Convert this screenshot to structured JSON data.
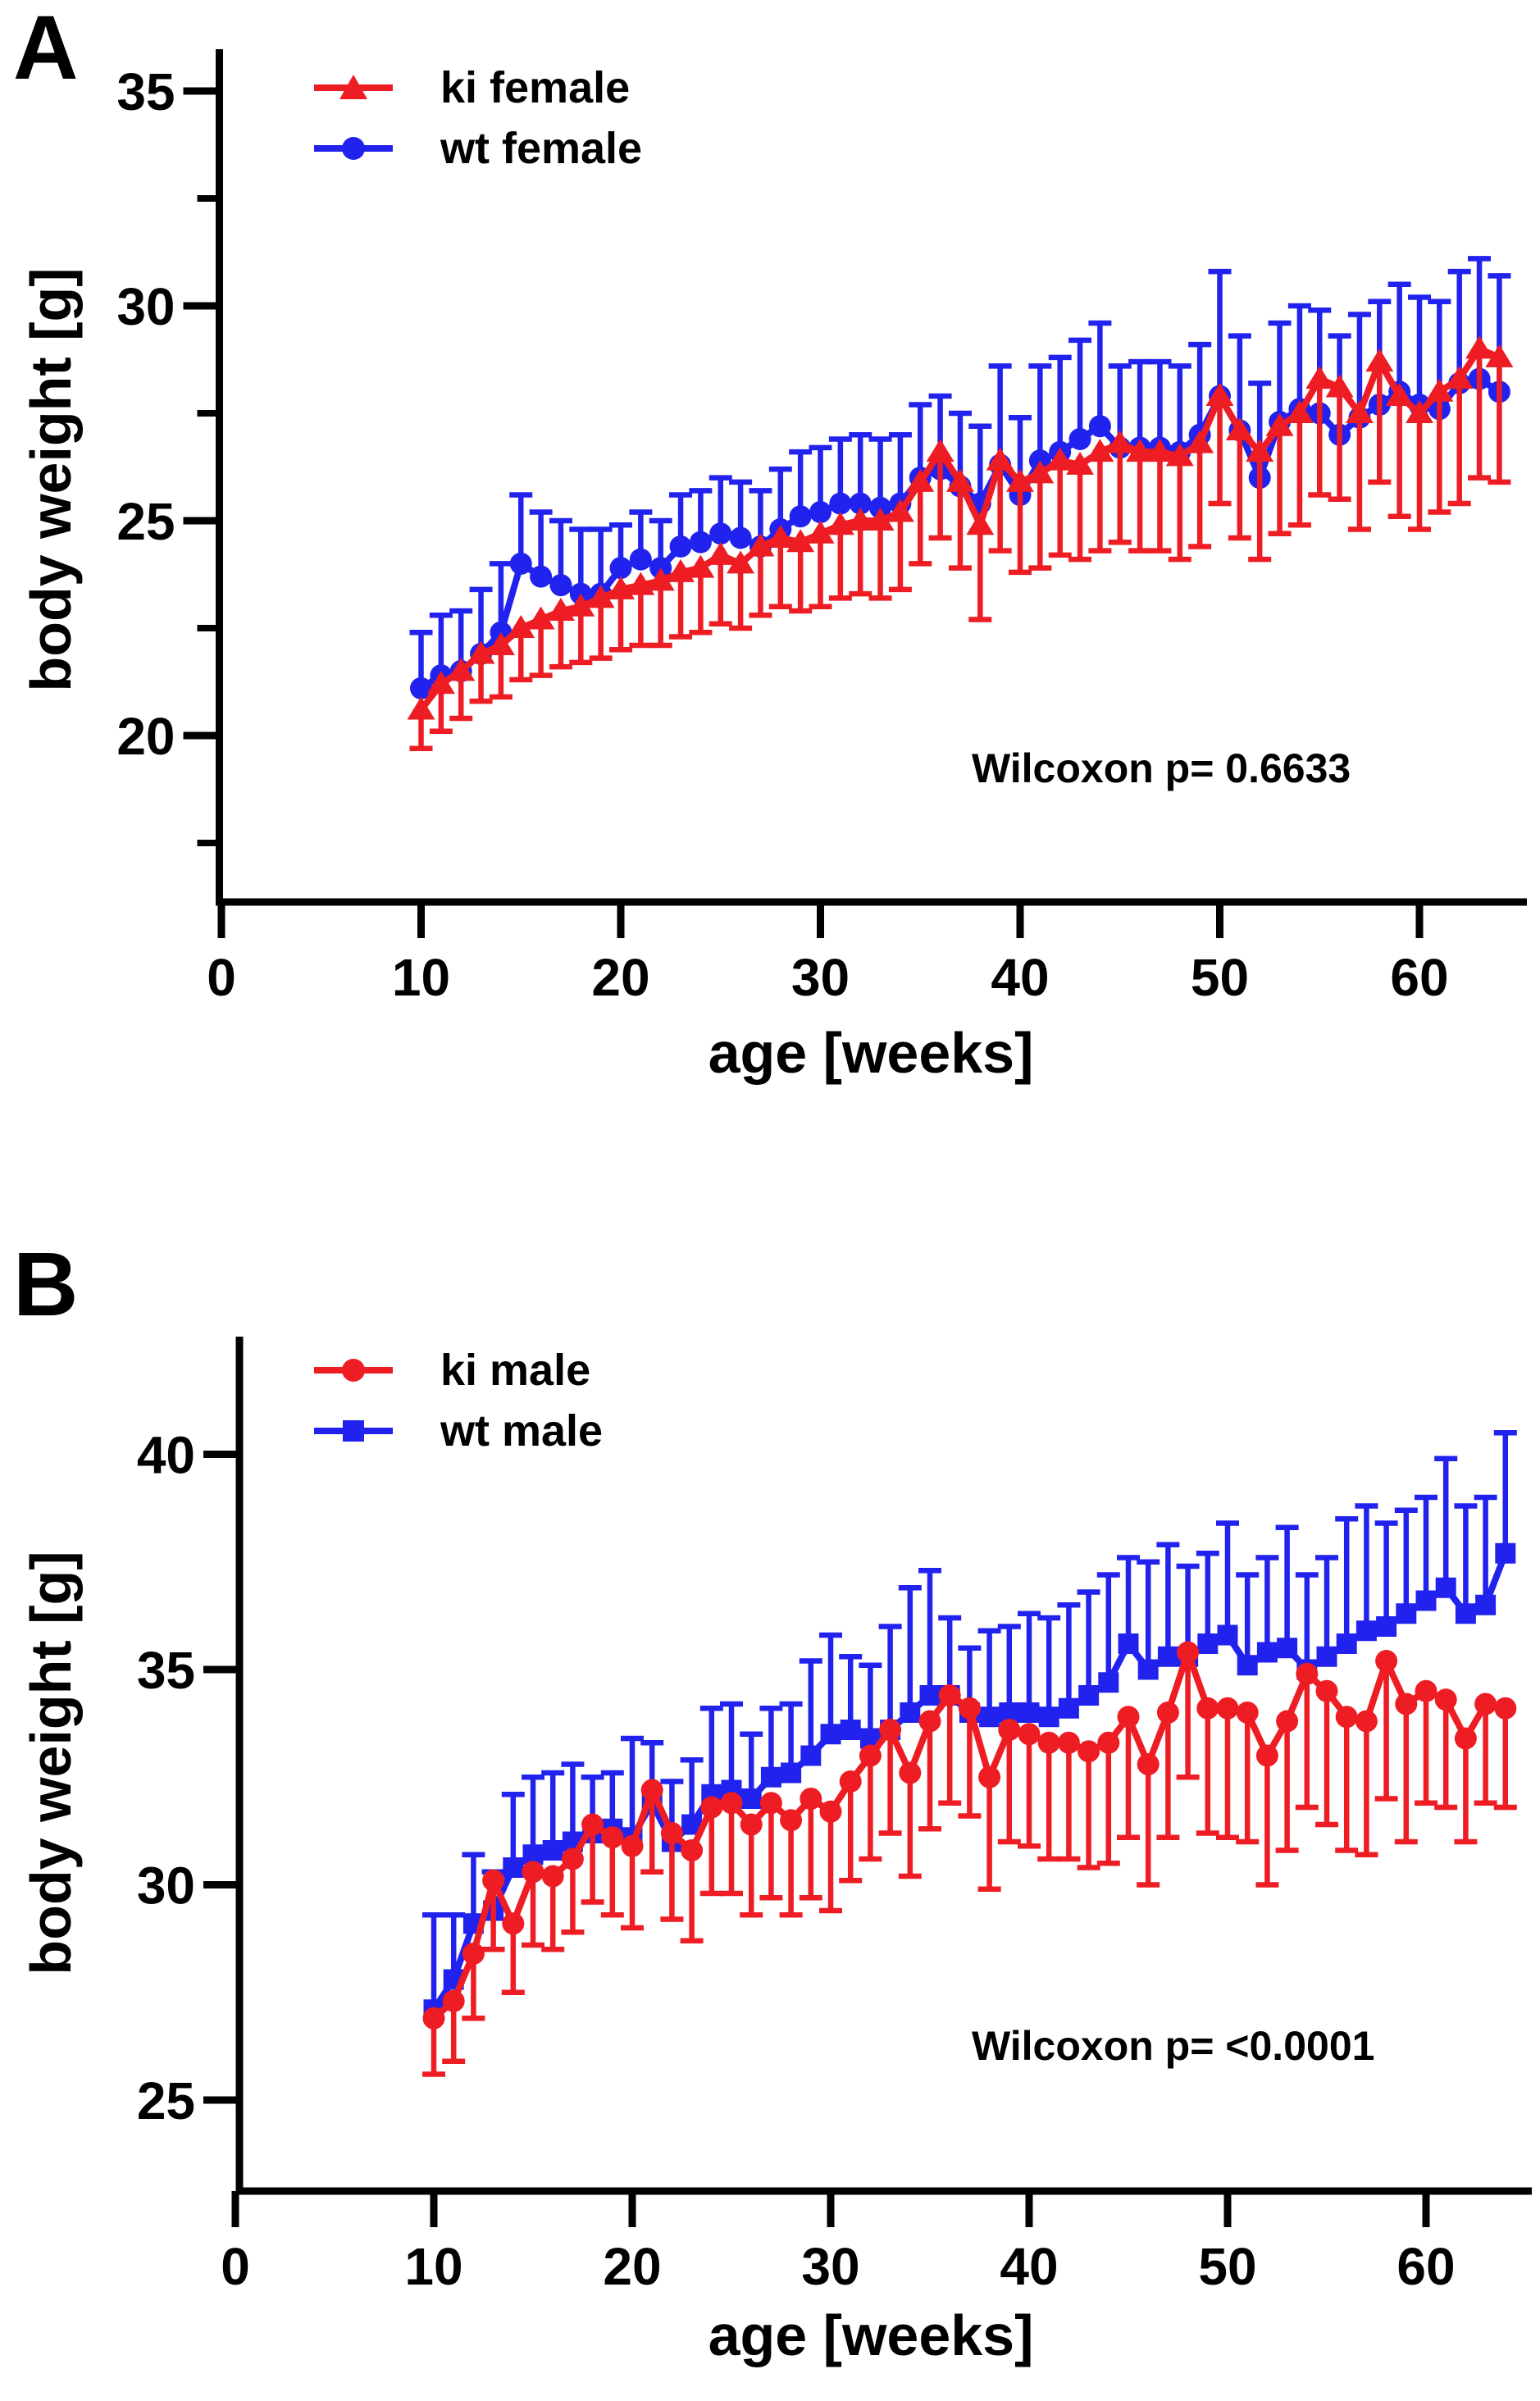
{
  "figure": {
    "background": "#ffffff",
    "text_color": "#000000",
    "panels": [
      {
        "label": "A"
      },
      {
        "label": "B"
      }
    ]
  },
  "chart_data": [
    {
      "type": "line",
      "panel": "A",
      "xlabel": "age [weeks]",
      "ylabel": "body weight [g]",
      "annotation": "Wilcoxon p= 0.6633",
      "legend_position": "top-left-inside",
      "grid": false,
      "xlim": [
        0,
        65.4
      ],
      "ylim": [
        16.2,
        36.0
      ],
      "x_ticks": [
        0,
        10,
        20,
        30,
        40,
        50,
        60
      ],
      "y_major_ticks": [
        20,
        25,
        30,
        35
      ],
      "y_minor_ticks": [
        17.5,
        22.5,
        27.5,
        32.5
      ],
      "x": [
        10,
        11,
        12,
        13,
        14,
        15,
        16,
        17,
        18,
        19,
        20,
        21,
        22,
        23,
        24,
        25,
        26,
        27,
        28,
        29,
        30,
        31,
        32,
        33,
        34,
        35,
        36,
        37,
        38,
        39,
        40,
        41,
        42,
        43,
        44,
        45,
        46,
        47,
        48,
        49,
        50,
        51,
        52,
        53,
        54,
        55,
        56,
        57,
        58,
        59,
        60,
        61,
        62,
        63,
        64
      ],
      "series": [
        {
          "name": "ki female",
          "color": "#EE1C23",
          "marker": "triangle",
          "error_direction": "down",
          "values": [
            20.6,
            21.2,
            21.5,
            21.9,
            22.1,
            22.5,
            22.7,
            22.9,
            23.0,
            23.2,
            23.4,
            23.5,
            23.6,
            23.8,
            23.9,
            24.2,
            24.0,
            24.4,
            24.6,
            24.5,
            24.7,
            24.9,
            25.0,
            25.0,
            25.2,
            25.9,
            26.6,
            25.9,
            24.9,
            26.4,
            25.9,
            26.1,
            26.4,
            26.3,
            26.6,
            26.8,
            26.6,
            26.6,
            26.5,
            26.8,
            27.9,
            27.1,
            26.6,
            27.2,
            27.5,
            28.3,
            28.1,
            27.5,
            28.7,
            27.9,
            27.5,
            28.0,
            28.3,
            29.0,
            28.8
          ],
          "sd": [
            0.9,
            1.1,
            1.1,
            1.1,
            1.2,
            1.2,
            1.3,
            1.3,
            1.3,
            1.4,
            1.4,
            1.4,
            1.5,
            1.5,
            1.5,
            1.6,
            1.5,
            1.6,
            1.6,
            1.6,
            1.7,
            1.7,
            1.7,
            1.8,
            1.8,
            1.9,
            2.0,
            2.0,
            2.2,
            2.1,
            2.1,
            2.2,
            2.2,
            2.2,
            2.3,
            2.3,
            2.3,
            2.3,
            2.4,
            2.4,
            2.5,
            2.5,
            2.5,
            2.5,
            2.6,
            2.7,
            2.6,
            2.7,
            2.8,
            2.8,
            2.7,
            2.8,
            2.9,
            3.0,
            2.9
          ]
        },
        {
          "name": "wt female",
          "color": "#2222EE",
          "marker": "circle",
          "error_direction": "up",
          "values": [
            21.1,
            21.4,
            21.5,
            21.9,
            22.4,
            24.0,
            23.7,
            23.5,
            23.3,
            23.3,
            23.9,
            24.1,
            23.9,
            24.4,
            24.5,
            24.7,
            24.6,
            24.4,
            24.8,
            25.1,
            25.2,
            25.4,
            25.4,
            25.3,
            25.4,
            26.0,
            26.2,
            25.8,
            25.4,
            26.3,
            25.6,
            26.4,
            26.6,
            26.9,
            27.2,
            26.7,
            26.7,
            26.7,
            26.6,
            27.0,
            27.9,
            27.1,
            26.0,
            27.3,
            27.6,
            27.5,
            27.0,
            27.4,
            27.7,
            28.0,
            27.7,
            27.6,
            28.2,
            28.3,
            28.0
          ],
          "sd": [
            1.3,
            1.4,
            1.4,
            1.5,
            1.6,
            1.6,
            1.5,
            1.5,
            1.5,
            1.5,
            1.0,
            1.1,
            1.1,
            1.2,
            1.2,
            1.3,
            1.3,
            1.3,
            1.4,
            1.5,
            1.5,
            1.5,
            1.6,
            1.6,
            1.6,
            1.7,
            1.7,
            1.7,
            1.8,
            2.3,
            1.8,
            2.2,
            2.2,
            2.3,
            2.4,
            1.9,
            2.0,
            2.0,
            2.0,
            2.1,
            2.9,
            2.2,
            2.2,
            2.3,
            2.4,
            2.4,
            2.3,
            2.4,
            2.4,
            2.5,
            2.5,
            2.5,
            2.6,
            2.8,
            2.7
          ]
        }
      ]
    },
    {
      "type": "line",
      "panel": "B",
      "xlabel": "age [weeks]",
      "ylabel": "body weight [g]",
      "annotation": "Wilcoxon p= <0.0001",
      "legend_position": "top-left-inside",
      "grid": false,
      "xlim": [
        0,
        65.3
      ],
      "ylim": [
        22.9,
        42.8
      ],
      "x_ticks": [
        0,
        10,
        20,
        30,
        40,
        50,
        60
      ],
      "y_major_ticks": [
        25,
        30,
        35,
        40
      ],
      "y_minor_ticks": [],
      "x": [
        10,
        11,
        12,
        13,
        14,
        15,
        16,
        17,
        18,
        19,
        20,
        21,
        22,
        23,
        24,
        25,
        26,
        27,
        28,
        29,
        30,
        31,
        32,
        33,
        34,
        35,
        36,
        37,
        38,
        39,
        40,
        41,
        42,
        43,
        44,
        45,
        46,
        47,
        48,
        49,
        50,
        51,
        52,
        53,
        54,
        55,
        56,
        57,
        58,
        59,
        60,
        61,
        62,
        63,
        64
      ],
      "series": [
        {
          "name": "ki male",
          "color": "#EE1C23",
          "marker": "circle",
          "error_direction": "down",
          "values": [
            26.9,
            27.3,
            28.4,
            30.1,
            29.1,
            30.3,
            30.2,
            30.6,
            31.4,
            31.1,
            30.9,
            32.2,
            31.2,
            30.8,
            31.8,
            31.9,
            31.4,
            31.9,
            31.5,
            32.0,
            31.7,
            32.4,
            33.0,
            33.6,
            32.6,
            33.8,
            34.4,
            34.1,
            32.5,
            33.6,
            33.5,
            33.3,
            33.3,
            33.1,
            33.3,
            33.9,
            32.8,
            34.0,
            35.4,
            34.1,
            34.1,
            34.0,
            33.0,
            33.8,
            34.9,
            34.5,
            33.9,
            33.8,
            35.2,
            34.2,
            34.5,
            34.3,
            33.4,
            34.2,
            34.1
          ],
          "sd": [
            1.3,
            1.4,
            1.5,
            1.6,
            1.6,
            1.7,
            1.7,
            1.7,
            1.8,
            1.8,
            1.9,
            1.9,
            2.0,
            2.1,
            2.0,
            2.1,
            2.1,
            2.2,
            2.2,
            2.3,
            2.3,
            2.3,
            2.4,
            2.4,
            2.4,
            2.5,
            2.5,
            2.5,
            2.6,
            2.6,
            2.6,
            2.7,
            2.7,
            2.7,
            2.8,
            2.8,
            2.8,
            2.9,
            2.9,
            2.9,
            3.0,
            3.0,
            3.0,
            3.0,
            3.1,
            3.1,
            3.1,
            3.1,
            3.2,
            3.2,
            2.6,
            2.5,
            2.4,
            2.3,
            2.3
          ]
        },
        {
          "name": "wt male",
          "color": "#2222EE",
          "marker": "square",
          "error_direction": "up",
          "values": [
            27.1,
            27.8,
            29.1,
            29.4,
            30.4,
            30.7,
            30.8,
            31.0,
            31.2,
            31.3,
            31.1,
            31.9,
            31.0,
            31.4,
            32.1,
            32.2,
            32.0,
            32.5,
            32.6,
            33.0,
            33.5,
            33.6,
            33.4,
            33.6,
            34.0,
            34.4,
            34.4,
            34.0,
            33.9,
            34.0,
            34.0,
            33.9,
            34.1,
            34.4,
            34.7,
            35.6,
            35.0,
            35.3,
            35.3,
            35.6,
            35.8,
            35.1,
            35.4,
            35.5,
            35.0,
            35.3,
            35.6,
            35.9,
            36.0,
            36.3,
            36.6,
            36.9,
            36.3,
            36.5,
            37.7
          ],
          "sd": [
            2.2,
            1.5,
            1.6,
            0.9,
            1.7,
            1.8,
            1.8,
            1.8,
            1.3,
            1.3,
            2.3,
            1.4,
            1.4,
            1.5,
            2.0,
            2.0,
            1.5,
            1.6,
            1.6,
            2.2,
            2.3,
            1.7,
            1.7,
            2.4,
            2.9,
            2.9,
            1.8,
            1.5,
            2.0,
            2.0,
            2.3,
            2.3,
            2.4,
            2.4,
            2.5,
            2.0,
            2.5,
            2.6,
            2.1,
            2.1,
            2.6,
            2.1,
            2.2,
            2.8,
            2.2,
            2.3,
            2.9,
            2.9,
            2.4,
            2.4,
            2.4,
            3.0,
            2.5,
            2.5,
            2.8
          ]
        }
      ]
    }
  ]
}
